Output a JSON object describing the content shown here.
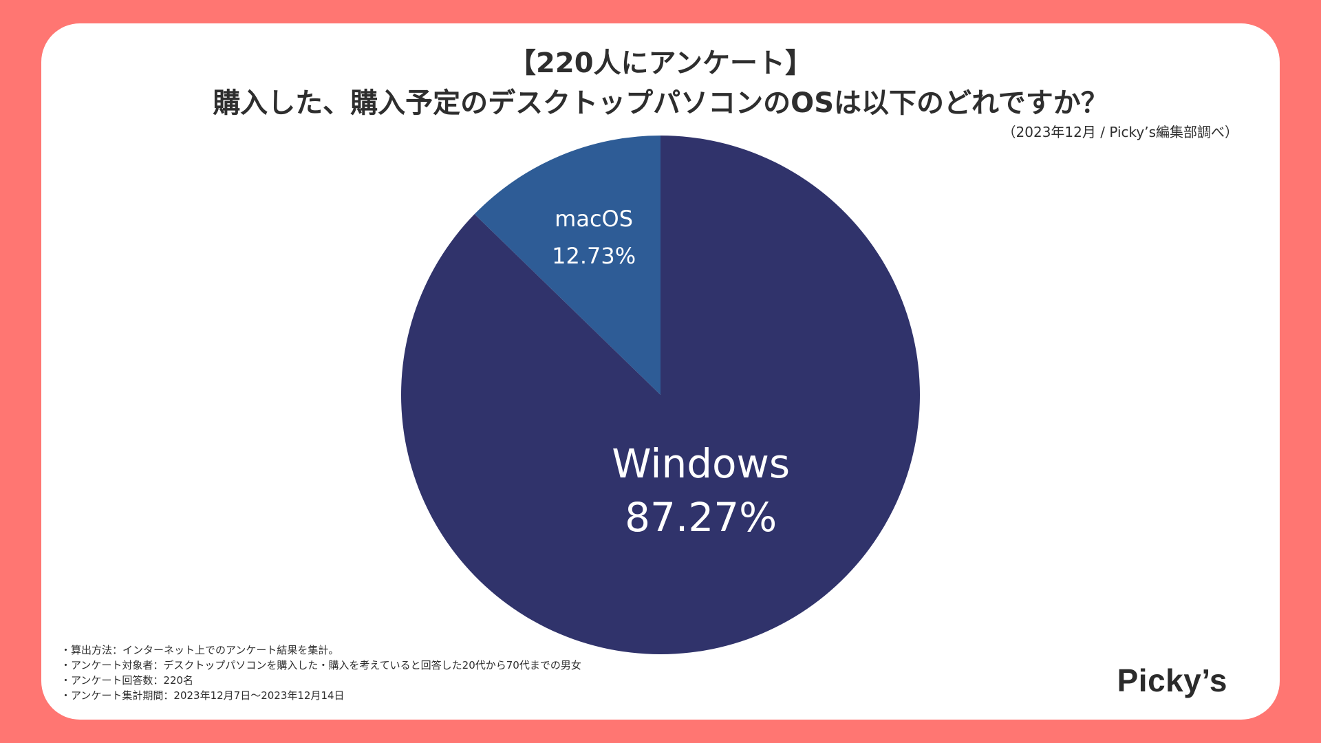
{
  "title": {
    "line1": "【220人にアンケート】",
    "line2": "購入した、購入予定のデスクトップパソコンのOSは以下のどれですか？"
  },
  "source": "（2023年12月 / Picky’s編集部調べ）",
  "chart_data": {
    "type": "pie",
    "slices": [
      {
        "label": "Windows",
        "value": 87.27,
        "value_label": "87.27%",
        "color": "#30336B"
      },
      {
        "label": "macOS",
        "value": 12.73,
        "value_label": "12.73%",
        "color": "#2E5C96"
      }
    ],
    "start": "12 o'clock",
    "direction": "clockwise",
    "labels_inside": true
  },
  "notes": [
    "・算出方法：インターネット上でのアンケート結果を集計。",
    "・アンケート対象者：デスクトップパソコンを購入した・購入を考えていると回答した20代から70代までの男女",
    "・アンケート回答数：220名",
    "・アンケート集計期間：2023年12月7日〜2023年12月14日"
  ],
  "logo_text": "Picky’s",
  "colors": {
    "background": "#FF7672",
    "card": "#FFFFFF",
    "text": "#2E2E2E"
  }
}
